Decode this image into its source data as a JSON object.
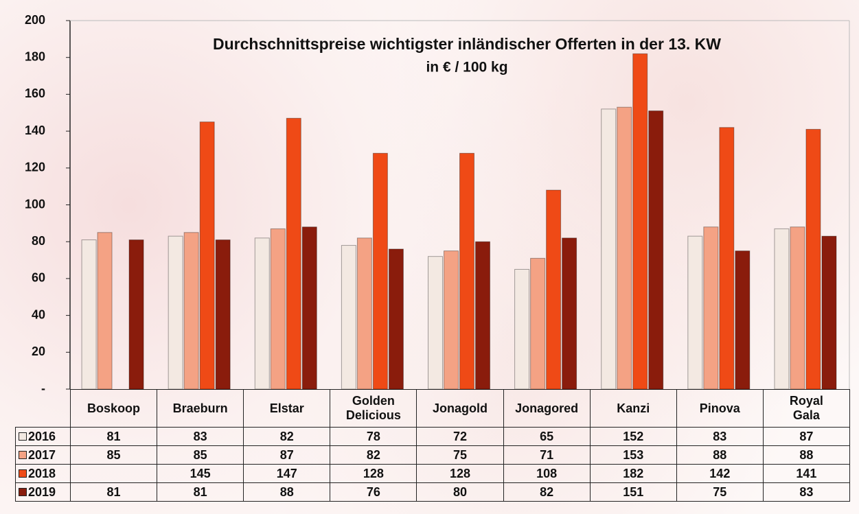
{
  "chart_data": {
    "type": "bar",
    "title": "Durchschnittspreise wichtigster inländischer Offerten in der 13. KW",
    "subtitle": "in € / 100 kg",
    "categories": [
      "Boskoop",
      "Braeburn",
      "Elstar",
      "Golden\nDelicious",
      "Jonagold",
      "Jonagored",
      "Kanzi",
      "Pinova",
      "Royal\nGala"
    ],
    "series": [
      {
        "name": "2016",
        "color": "#f3e9e2",
        "values": [
          81,
          83,
          82,
          78,
          72,
          65,
          152,
          83,
          87
        ]
      },
      {
        "name": "2017",
        "color": "#f4a284",
        "values": [
          85,
          85,
          87,
          82,
          75,
          71,
          153,
          88,
          88
        ]
      },
      {
        "name": "2018",
        "color": "#ef4a16",
        "values": [
          null,
          145,
          147,
          128,
          128,
          108,
          182,
          142,
          141
        ]
      },
      {
        "name": "2019",
        "color": "#8a1c0c",
        "values": [
          81,
          81,
          88,
          76,
          80,
          82,
          151,
          75,
          83
        ]
      }
    ],
    "ylim": [
      0,
      200
    ],
    "yticks": [
      {
        "value": 0,
        "label": "-"
      },
      20,
      40,
      60,
      80,
      100,
      120,
      140,
      160,
      180,
      200
    ],
    "grid": false,
    "data_table": true
  }
}
